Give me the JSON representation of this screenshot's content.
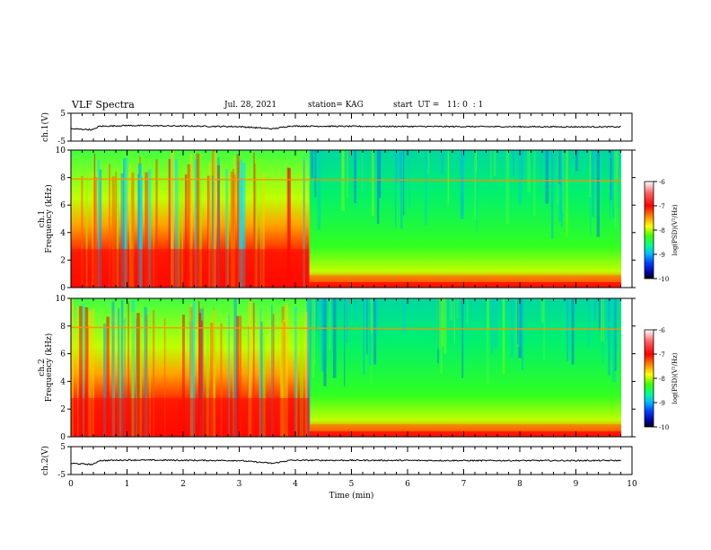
{
  "header": {
    "title": "VLF Spectra",
    "date": "Jul. 28, 2021",
    "station": "station= KAG",
    "start_ut": "start  UT =   11: 0  : 1"
  },
  "chart_data": [
    {
      "type": "line",
      "panel": "ch1-waveform",
      "ylabel": "ch.1(V)",
      "ylim": [
        -5,
        5
      ],
      "yticks": [
        "5",
        "-5"
      ],
      "xlim": [
        0,
        10
      ],
      "description_values": [
        {
          "x": 0.0,
          "y": -0.6
        },
        {
          "x": 0.4,
          "y": -0.9
        },
        {
          "x": 0.5,
          "y": 0.3
        },
        {
          "x": 1.0,
          "y": 0.6
        },
        {
          "x": 2.0,
          "y": 0.4
        },
        {
          "x": 3.0,
          "y": 0.2
        },
        {
          "x": 3.6,
          "y": -0.6
        },
        {
          "x": 3.9,
          "y": 0.4
        },
        {
          "x": 5.0,
          "y": 0.3
        },
        {
          "x": 7.0,
          "y": 0.2
        },
        {
          "x": 9.8,
          "y": 0.1
        }
      ]
    },
    {
      "type": "heatmap",
      "panel": "ch1-spectrogram",
      "ylabel": "ch.1",
      "ylabel2": "Frequency (kHz)",
      "ylim": [
        0,
        10
      ],
      "yticks": [
        "0",
        "2",
        "4",
        "6",
        "8",
        "10"
      ],
      "xlim": [
        0,
        10
      ],
      "colorbar": {
        "label": "log(PSD)(V²/Hz)",
        "ticks": [
          "-6",
          "-7",
          "-8",
          "-9",
          "-10"
        ],
        "range": [
          -10,
          -6
        ]
      },
      "features": [
        {
          "name": "broadband-intense",
          "x_range": [
            0,
            4.25
          ],
          "level": -6.8
        },
        {
          "name": "quiet-background",
          "x_range": [
            4.25,
            9.8
          ],
          "level": -8.3
        },
        {
          "name": "narrowband-line",
          "freq_khz": 7.9,
          "level": -7.0
        }
      ]
    },
    {
      "type": "heatmap",
      "panel": "ch2-spectrogram",
      "ylabel": "ch.2",
      "ylabel2": "Frequency (kHz)",
      "ylim": [
        0,
        10
      ],
      "yticks": [
        "0",
        "2",
        "4",
        "6",
        "8",
        "10"
      ],
      "xlim": [
        0,
        10
      ],
      "colorbar": {
        "label": "log(PSD)(V²/Hz)",
        "ticks": [
          "-6",
          "-7",
          "-8",
          "-9",
          "-10"
        ],
        "range": [
          -10,
          -6
        ]
      },
      "features": [
        {
          "name": "broadband-intense",
          "x_range": [
            0,
            4.25
          ],
          "level": -6.8
        },
        {
          "name": "quiet-background",
          "x_range": [
            4.25,
            9.8
          ],
          "level": -8.3
        },
        {
          "name": "narrowband-line",
          "freq_khz": 7.9,
          "level": -7.0
        }
      ]
    },
    {
      "type": "line",
      "panel": "ch2-waveform",
      "ylabel": "ch.2(V)",
      "ylim": [
        -5,
        5
      ],
      "yticks": [
        "5",
        "-5"
      ],
      "xlim": [
        0,
        10
      ],
      "xlabel": "Time (min)",
      "xticks": [
        "0",
        "1",
        "2",
        "3",
        "4",
        "5",
        "6",
        "7",
        "8",
        "9",
        "10"
      ],
      "description_values": [
        {
          "x": 0.0,
          "y": -1.0
        },
        {
          "x": 0.4,
          "y": -1.4
        },
        {
          "x": 0.5,
          "y": 0.0
        },
        {
          "x": 1.0,
          "y": 0.2
        },
        {
          "x": 2.0,
          "y": 0.1
        },
        {
          "x": 3.0,
          "y": 0.0
        },
        {
          "x": 3.6,
          "y": -1.0
        },
        {
          "x": 3.9,
          "y": 0.1
        },
        {
          "x": 5.0,
          "y": 0.1
        },
        {
          "x": 7.0,
          "y": 0.0
        },
        {
          "x": 9.8,
          "y": 0.0
        }
      ]
    }
  ]
}
